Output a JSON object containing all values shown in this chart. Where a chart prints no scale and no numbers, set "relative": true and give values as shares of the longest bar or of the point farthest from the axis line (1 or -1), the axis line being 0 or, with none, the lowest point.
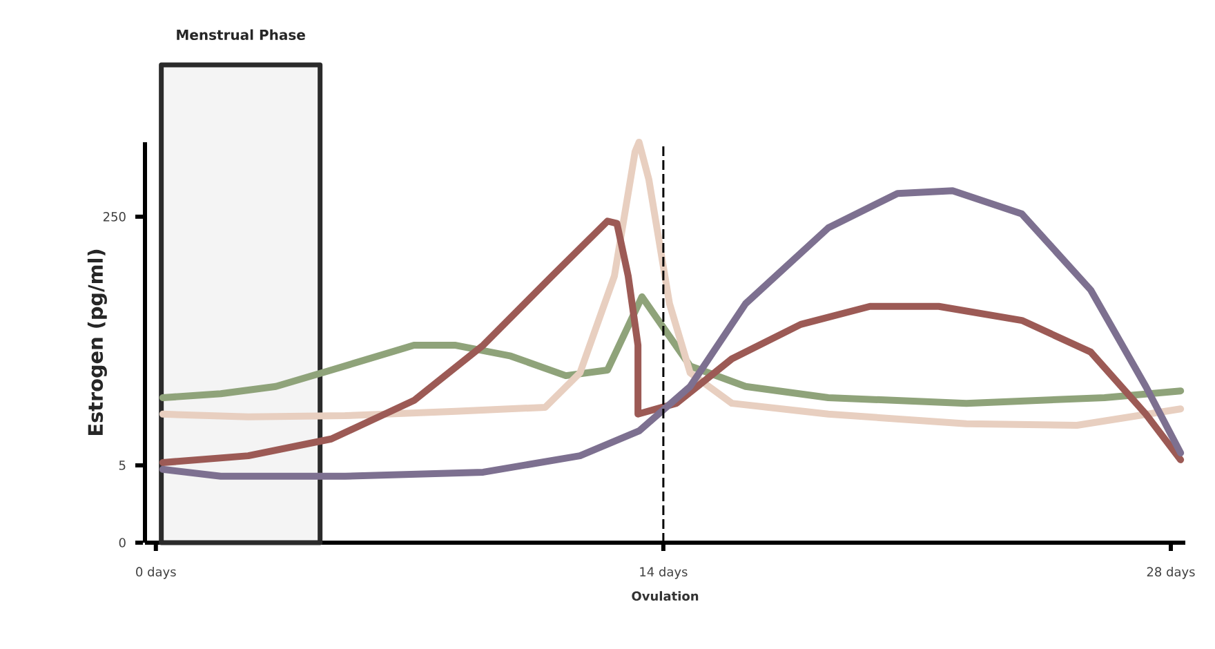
{
  "chart_data": {
    "type": "line",
    "xlabel": "Ovulation",
    "ylabel": "Estrogen (pg/ml)",
    "marker": "none",
    "xlim": [
      -0.3,
      28.4
    ],
    "xticks": [
      {
        "value": 0,
        "label": "0 days"
      },
      {
        "value": 14,
        "label": "14 days"
      },
      {
        "value": 28,
        "label": "28 days"
      }
    ],
    "relative": true,
    "annotations": [
      "0",
      "5",
      "250"
    ],
    "series": [
      {
        "color": "#8fa37a",
        "x": [
          0.19,
          1.79,
          3.31,
          4.84,
          7.12,
          8.27,
          9.79,
          11.31,
          12.46,
          13.41,
          14.74,
          16.27,
          18.55,
          22.36,
          26.17,
          28.27
        ],
        "values": [
          0.362,
          0.372,
          0.39,
          0.431,
          0.493,
          0.493,
          0.466,
          0.417,
          0.431,
          0.614,
          0.441,
          0.39,
          0.362,
          0.348,
          0.362,
          0.379
        ]
      },
      {
        "color": "#e8cfc0",
        "x": [
          0.19,
          2.55,
          5.22,
          8.27,
          10.74,
          11.7,
          12.65,
          13.22,
          13.33,
          13.6,
          14.17,
          14.74,
          15.89,
          18.55,
          22.36,
          25.41,
          28.27
        ],
        "values": [
          0.321,
          0.314,
          0.317,
          0.328,
          0.338,
          0.424,
          0.666,
          0.976,
          1.0,
          0.907,
          0.597,
          0.424,
          0.348,
          0.321,
          0.297,
          0.293,
          0.334
        ]
      },
      {
        "color": "#9c5a55",
        "x": [
          0.19,
          2.55,
          4.84,
          7.12,
          9.03,
          10.93,
          12.46,
          12.72,
          13.03,
          13.3,
          13.3,
          14.36,
          15.89,
          17.79,
          19.7,
          21.6,
          23.89,
          25.79,
          27.31,
          28.27
        ],
        "values": [
          0.2,
          0.217,
          0.259,
          0.355,
          0.493,
          0.666,
          0.803,
          0.797,
          0.666,
          0.493,
          0.321,
          0.348,
          0.459,
          0.545,
          0.59,
          0.59,
          0.555,
          0.476,
          0.321,
          0.207
        ]
      },
      {
        "color": "#7d7090",
        "x": [
          0.19,
          1.79,
          5.22,
          9.03,
          11.7,
          13.33,
          14.74,
          16.27,
          18.55,
          20.46,
          21.98,
          23.89,
          25.79,
          27.31,
          28.27
        ],
        "values": [
          0.183,
          0.166,
          0.166,
          0.176,
          0.217,
          0.279,
          0.39,
          0.597,
          0.786,
          0.872,
          0.879,
          0.821,
          0.631,
          0.39,
          0.224
        ]
      }
    ],
    "bands": [
      {
        "axis": "x",
        "from": 0.15,
        "to": 4.53,
        "label": "Menstrual Phase",
        "color": "#2b2b2b"
      }
    ],
    "ref_lines": [
      {
        "axis": "x",
        "value": 14,
        "line_style": "dashed",
        "color": "#000000"
      }
    ]
  }
}
